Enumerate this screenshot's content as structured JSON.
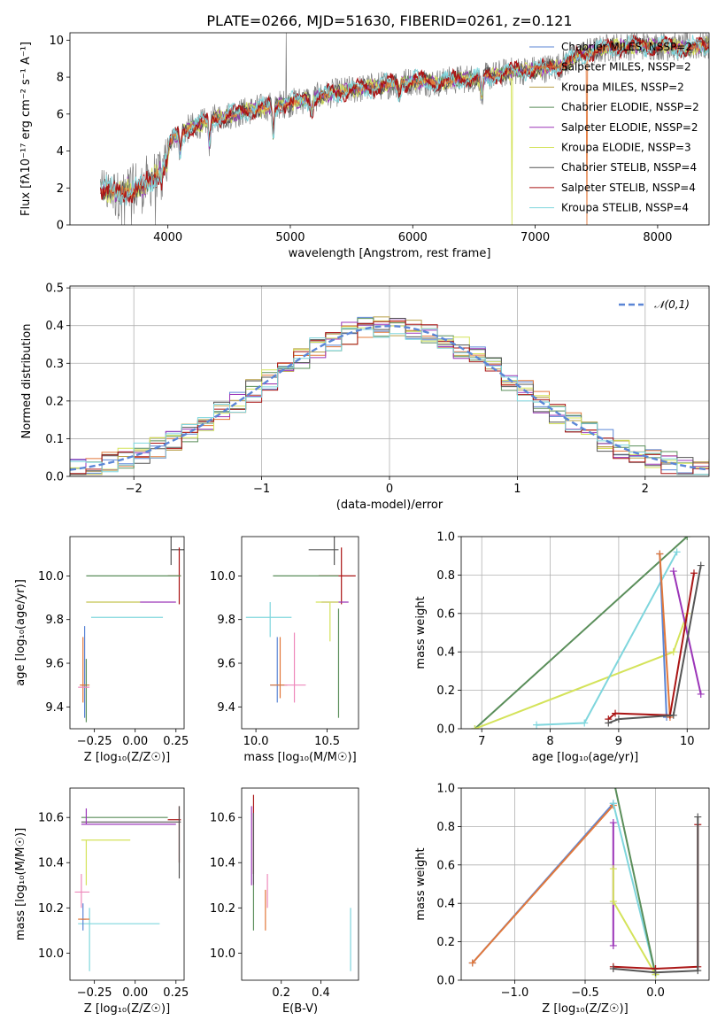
{
  "figure": {
    "title": "PLATE=0266, MJD=51630, FIBERID=0261, z=0.121",
    "model_colors": [
      "#5b86d6",
      "#e2783a",
      "#b9a04a",
      "#5a8e5a",
      "#9b35b8",
      "#d4e35a",
      "#555555",
      "#aa1515",
      "#7fd6dd"
    ],
    "extra_colors": [
      "#ee88bb",
      "#7f7f7f"
    ]
  },
  "chart_data": [
    {
      "id": "spectrum",
      "type": "line",
      "xlabel": "wavelength [Angstrom, rest frame]",
      "ylabel": "Flux [fλ10⁻¹⁷ erg cm⁻² s⁻¹ A⁻¹]",
      "xlim": [
        3200,
        8420
      ],
      "ylim": [
        0,
        10.4
      ],
      "xticks": [
        4000,
        5000,
        6000,
        7000,
        8000
      ],
      "yticks": [
        0,
        2,
        4,
        6,
        8,
        10
      ],
      "legend_position": "top-right",
      "legend": [
        {
          "name": "Chabrier MILES, NSSP=2",
          "color": "#5b86d6"
        },
        {
          "name": "Salpeter MILES, NSSP=2",
          "color": "#e2783a"
        },
        {
          "name": "Kroupa MILES, NSSP=2",
          "color": "#b9a04a"
        },
        {
          "name": "Chabrier ELODIE, NSSP=2",
          "color": "#5a8e5a"
        },
        {
          "name": "Salpeter ELODIE, NSSP=2",
          "color": "#9b35b8"
        },
        {
          "name": "Kroupa ELODIE, NSSP=3",
          "color": "#d4e35a"
        },
        {
          "name": "Chabrier STELIB, NSSP=4",
          "color": "#555555"
        },
        {
          "name": "Salpeter STELIB, NSSP=4",
          "color": "#aa1515"
        },
        {
          "name": "Kroupa STELIB, NSSP=4",
          "color": "#7fd6dd"
        }
      ],
      "continuum_x": [
        3450,
        3600,
        3800,
        3950,
        4050,
        4200,
        4400,
        4600,
        4800,
        5000,
        5200,
        5400,
        5600,
        5800,
        6000,
        6200,
        6400,
        6600,
        6800,
        7000,
        7200,
        7400,
        7600,
        7800,
        8000,
        8200,
        8420
      ],
      "continuum_y": [
        2.3,
        2.1,
        2.4,
        3.3,
        4.8,
        5.3,
        5.8,
        6.1,
        6.4,
        6.6,
        6.9,
        7.2,
        7.4,
        7.6,
        7.8,
        7.7,
        7.9,
        8.0,
        8.3,
        8.4,
        8.6,
        9.3,
        9.6,
        9.7,
        9.7,
        9.6,
        9.7
      ]
    },
    {
      "id": "residuals",
      "type": "histogram",
      "xlabel": "(data-model)/error",
      "ylabel": "Normed distribution",
      "xlim": [
        -2.5,
        2.5
      ],
      "ylim": [
        0,
        0.505
      ],
      "xticks": [
        -2,
        -1,
        0,
        1,
        2
      ],
      "yticks": [
        0.0,
        0.1,
        0.2,
        0.3,
        0.4,
        0.5
      ],
      "grid": true,
      "legend_position": "top-right",
      "legend": [
        {
          "name": "𝒩(0,1)",
          "color": "#5b86d6",
          "dash": true
        }
      ]
    },
    {
      "id": "age_vs_Z",
      "type": "scatter",
      "xlabel": "Z [log₁₀(Z/Z☉)]",
      "ylabel": "age  [log₁₀(age/yr)]",
      "xlim": [
        -0.4,
        0.3
      ],
      "ylim": [
        9.3,
        10.18
      ],
      "xticks": [
        -0.25,
        0.0,
        0.25
      ],
      "xtick_labels": [
        "−0.25",
        "0.00",
        "0.25"
      ],
      "yticks": [
        9.4,
        9.6,
        9.8,
        10.0
      ],
      "yticks_labels": [
        "9.4",
        "9.6",
        "9.8",
        "10.0"
      ],
      "points": [
        {
          "x": 0.22,
          "y": 10.12,
          "x0": 0.22,
          "x1": 0.3,
          "y0": 10.05,
          "y1": 10.18,
          "color": "#555555"
        },
        {
          "x": 0.27,
          "y": 10.0,
          "x0": 0.2,
          "x1": 0.28,
          "y0": 9.87,
          "y1": 10.13,
          "color": "#aa1515"
        },
        {
          "x": -0.28,
          "y": 10.0,
          "x0": -0.3,
          "x1": 0.28,
          "y0": 10.0,
          "y1": 10.0,
          "color": "#5a8e5a"
        },
        {
          "x": -0.2,
          "y": 9.88,
          "x0": -0.3,
          "x1": 0.25,
          "y0": 9.88,
          "y1": 9.88,
          "color": "#9b35b8"
        },
        {
          "x": -0.2,
          "y": 9.88,
          "x0": -0.3,
          "x1": 0.03,
          "y0": 9.88,
          "y1": 9.88,
          "color": "#d4e35a"
        },
        {
          "x": -0.1,
          "y": 9.81,
          "x0": -0.27,
          "x1": 0.17,
          "y0": 9.81,
          "y1": 9.81,
          "color": "#7fd6dd"
        },
        {
          "x": -0.31,
          "y": 9.5,
          "x0": -0.33,
          "x1": -0.3,
          "y0": 9.35,
          "y1": 9.77,
          "color": "#5b86d6"
        },
        {
          "x": -0.32,
          "y": 9.5,
          "x0": -0.34,
          "x1": -0.28,
          "y0": 9.42,
          "y1": 9.72,
          "color": "#e2783a"
        },
        {
          "x": -0.3,
          "y": 9.5,
          "x0": -0.3,
          "x1": -0.3,
          "y0": 9.33,
          "y1": 9.62,
          "color": "#5a8e5a"
        },
        {
          "x": -0.34,
          "y": 9.49,
          "x0": -0.35,
          "x1": -0.28,
          "y0": 9.49,
          "y1": 9.49,
          "color": "#ee88bb"
        }
      ]
    },
    {
      "id": "age_vs_mass",
      "type": "scatter",
      "xlabel": "mass [log₁₀(M/M☉)]",
      "ylabel": "",
      "xlim": [
        9.9,
        10.72
      ],
      "ylim": [
        9.3,
        10.18
      ],
      "xticks": [
        10.0,
        10.5
      ],
      "xtick_labels": [
        "10.0",
        "10.5"
      ],
      "yticks": [
        9.4,
        9.6,
        9.8,
        10.0
      ],
      "yticks_labels": [
        "9.4",
        "9.6",
        "9.8",
        "10.0"
      ],
      "points": [
        {
          "x": 10.55,
          "y": 10.12,
          "x0": 10.37,
          "x1": 10.58,
          "y0": 10.05,
          "y1": 10.18,
          "color": "#555555"
        },
        {
          "x": 10.6,
          "y": 10.0,
          "x0": 10.44,
          "x1": 10.7,
          "y0": 9.87,
          "y1": 10.13,
          "color": "#aa1515"
        },
        {
          "x": 10.5,
          "y": 10.0,
          "x0": 10.12,
          "x1": 10.58,
          "y0": 10.0,
          "y1": 10.0,
          "color": "#5a8e5a"
        },
        {
          "x": 10.6,
          "y": 9.88,
          "x0": 10.46,
          "x1": 10.65,
          "y0": 9.88,
          "y1": 9.88,
          "color": "#9b35b8"
        },
        {
          "x": 10.52,
          "y": 9.88,
          "x0": 10.42,
          "x1": 10.58,
          "y0": 9.7,
          "y1": 9.88,
          "color": "#d4e35a"
        },
        {
          "x": 10.1,
          "y": 9.81,
          "x0": 9.93,
          "x1": 10.25,
          "y0": 9.72,
          "y1": 9.88,
          "color": "#7fd6dd"
        },
        {
          "x": 10.15,
          "y": 9.5,
          "x0": 10.1,
          "x1": 10.2,
          "y0": 9.42,
          "y1": 9.72,
          "color": "#5b86d6"
        },
        {
          "x": 10.17,
          "y": 9.5,
          "x0": 10.1,
          "x1": 10.22,
          "y0": 9.44,
          "y1": 9.72,
          "color": "#e2783a"
        },
        {
          "x": 10.58,
          "y": 9.6,
          "x0": 10.58,
          "x1": 10.58,
          "y0": 9.35,
          "y1": 9.85,
          "color": "#5a8e5a"
        },
        {
          "x": 10.27,
          "y": 9.5,
          "x0": 10.2,
          "x1": 10.35,
          "y0": 9.42,
          "y1": 9.74,
          "color": "#ee88bb"
        }
      ]
    },
    {
      "id": "massweight_vs_age",
      "type": "line",
      "xlabel": "age  [log₁₀(age/yr)]",
      "ylabel": "mass weight",
      "xlim": [
        6.7,
        10.32
      ],
      "ylim": [
        0,
        1
      ],
      "xticks": [
        7,
        8,
        9,
        10
      ],
      "yticks": [
        0.0,
        0.2,
        0.4,
        0.6,
        0.8,
        1.0
      ],
      "grid": true,
      "series": [
        {
          "color": "#5a8e5a",
          "x": [
            6.9,
            10.0
          ],
          "y": [
            0.0,
            1.0
          ]
        },
        {
          "color": "#d4e35a",
          "x": [
            6.9,
            9.8,
            10.0
          ],
          "y": [
            0.0,
            0.4,
            0.6
          ]
        },
        {
          "color": "#7fd6dd",
          "x": [
            7.8,
            8.5,
            9.85
          ],
          "y": [
            0.02,
            0.03,
            0.92
          ]
        },
        {
          "color": "#5b86d6",
          "x": [
            9.6,
            9.7
          ],
          "y": [
            0.91,
            0.06
          ]
        },
        {
          "color": "#e2783a",
          "x": [
            9.6,
            9.75
          ],
          "y": [
            0.91,
            0.06
          ]
        },
        {
          "color": "#9b35b8",
          "x": [
            9.8,
            10.2
          ],
          "y": [
            0.82,
            0.18
          ]
        },
        {
          "color": "#aa1515",
          "x": [
            8.85,
            8.95,
            9.75,
            10.1
          ],
          "y": [
            0.05,
            0.08,
            0.07,
            0.81
          ]
        },
        {
          "color": "#555555",
          "x": [
            8.85,
            9.0,
            9.8,
            10.2
          ],
          "y": [
            0.03,
            0.05,
            0.07,
            0.85
          ]
        }
      ]
    },
    {
      "id": "mass_vs_Z",
      "type": "scatter",
      "xlabel": "Z [log₁₀(Z/Z☉)]",
      "ylabel": "mass [log₁₀(M/M☉)]",
      "xlim": [
        -0.4,
        0.3
      ],
      "ylim": [
        9.88,
        10.73
      ],
      "xticks": [
        -0.25,
        0.0,
        0.25
      ],
      "xtick_labels": [
        "−0.25",
        "0.00",
        "0.25"
      ],
      "yticks": [
        10.0,
        10.2,
        10.4,
        10.6
      ],
      "yticks_labels": [
        "10.0",
        "10.2",
        "10.4",
        "10.6"
      ],
      "points": [
        {
          "x": -0.3,
          "y": 10.58,
          "x0": -0.33,
          "x1": 0.28,
          "y0": 10.58,
          "y1": 10.58,
          "color": "#555555"
        },
        {
          "x": 0.27,
          "y": 10.59,
          "x0": 0.2,
          "x1": 0.28,
          "y0": 10.4,
          "y1": 10.65,
          "color": "#aa1515"
        },
        {
          "x": -0.3,
          "y": 10.6,
          "x0": -0.33,
          "x1": 0.2,
          "y0": 10.6,
          "y1": 10.6,
          "color": "#5a8e5a"
        },
        {
          "x": -0.3,
          "y": 10.57,
          "x0": -0.33,
          "x1": 0.25,
          "y0": 10.57,
          "y1": 10.64,
          "color": "#9b35b8"
        },
        {
          "x": -0.3,
          "y": 10.5,
          "x0": -0.33,
          "x1": -0.03,
          "y0": 10.3,
          "y1": 10.5,
          "color": "#d4e35a"
        },
        {
          "x": -0.28,
          "y": 10.13,
          "x0": -0.35,
          "x1": 0.15,
          "y0": 9.92,
          "y1": 10.2,
          "color": "#7fd6dd"
        },
        {
          "x": -0.32,
          "y": 10.15,
          "x0": -0.33,
          "x1": -0.3,
          "y0": 10.1,
          "y1": 10.22,
          "color": "#5b86d6"
        },
        {
          "x": -0.32,
          "y": 10.15,
          "x0": -0.35,
          "x1": -0.28,
          "y0": 10.15,
          "y1": 10.15,
          "color": "#e2783a"
        },
        {
          "x": -0.33,
          "y": 10.27,
          "x0": -0.37,
          "x1": -0.28,
          "y0": 10.2,
          "y1": 10.35,
          "color": "#ee88bb"
        },
        {
          "x": 0.27,
          "y": 10.45,
          "x0": 0.27,
          "x1": 0.27,
          "y0": 10.33,
          "y1": 10.65,
          "color": "#555555"
        }
      ]
    },
    {
      "id": "mass_vs_ebv",
      "type": "scatter",
      "xlabel": "E(B-V)",
      "ylabel": "",
      "xlim": [
        0.0,
        0.59
      ],
      "ylim": [
        9.88,
        10.73
      ],
      "xticks": [
        0.2,
        0.4
      ],
      "xtick_labels": [
        "0.2",
        "0.4"
      ],
      "yticks": [
        10.0,
        10.2,
        10.4,
        10.6
      ],
      "yticks_labels": [
        "10.0",
        "10.2",
        "10.4",
        "10.6"
      ],
      "points": [
        {
          "x": 0.05,
          "y": 10.5,
          "x0": 0.05,
          "x1": 0.05,
          "y0": 10.3,
          "y1": 10.65,
          "color": "#9b35b8"
        },
        {
          "x": 0.06,
          "y": 10.55,
          "x0": 0.06,
          "x1": 0.06,
          "y0": 10.35,
          "y1": 10.7,
          "color": "#aa1515"
        },
        {
          "x": 0.06,
          "y": 10.2,
          "x0": 0.06,
          "x1": 0.06,
          "y0": 10.1,
          "y1": 10.3,
          "color": "#5a8e5a"
        },
        {
          "x": 0.12,
          "y": 10.2,
          "x0": 0.12,
          "x1": 0.12,
          "y0": 10.1,
          "y1": 10.28,
          "color": "#e2783a"
        },
        {
          "x": 0.13,
          "y": 10.27,
          "x0": 0.13,
          "x1": 0.13,
          "y0": 10.2,
          "y1": 10.35,
          "color": "#ee88bb"
        },
        {
          "x": 0.55,
          "y": 10.05,
          "x0": 0.55,
          "x1": 0.55,
          "y0": 9.92,
          "y1": 10.2,
          "color": "#7fd6dd"
        },
        {
          "x": 0.06,
          "y": 10.45,
          "x0": 0.06,
          "x1": 0.06,
          "y0": 10.3,
          "y1": 10.62,
          "color": "#555555"
        }
      ]
    },
    {
      "id": "massweight_vs_Z",
      "type": "line",
      "xlabel": "Z [log₁₀(Z/Z☉)]",
      "ylabel": "mass weight",
      "xlim": [
        -1.38,
        0.38
      ],
      "ylim": [
        0,
        1
      ],
      "xticks": [
        -1.0,
        -0.5,
        0.0
      ],
      "xtick_labels": [
        "−1.0",
        "−0.5",
        "0.0"
      ],
      "yticks": [
        0.0,
        0.2,
        0.4,
        0.6,
        0.8,
        1.0
      ],
      "grid": true,
      "series": [
        {
          "color": "#5b86d6",
          "x": [
            -1.3,
            -0.3
          ],
          "y": [
            0.09,
            0.92
          ]
        },
        {
          "color": "#e2783a",
          "x": [
            -1.3,
            -0.3
          ],
          "y": [
            0.09,
            0.91
          ]
        },
        {
          "color": "#7fd6dd",
          "x": [
            -0.3,
            0.0
          ],
          "y": [
            0.92,
            0.03
          ]
        },
        {
          "color": "#5a8e5a",
          "x": [
            -0.3,
            0.0
          ],
          "y": [
            1.05,
            0.03
          ]
        },
        {
          "color": "#9b35b8",
          "x": [
            -0.3,
            -0.3
          ],
          "y": [
            0.82,
            0.18
          ]
        },
        {
          "color": "#d4e35a",
          "x": [
            -0.3,
            -0.3,
            0.0
          ],
          "y": [
            0.58,
            0.41,
            0.03
          ]
        },
        {
          "color": "#aa1515",
          "x": [
            -0.3,
            0.0,
            0.3,
            0.3
          ],
          "y": [
            0.07,
            0.06,
            0.07,
            0.81
          ]
        },
        {
          "color": "#555555",
          "x": [
            -0.3,
            0.0,
            0.3,
            0.3
          ],
          "y": [
            0.06,
            0.04,
            0.05,
            0.85
          ]
        }
      ]
    }
  ]
}
